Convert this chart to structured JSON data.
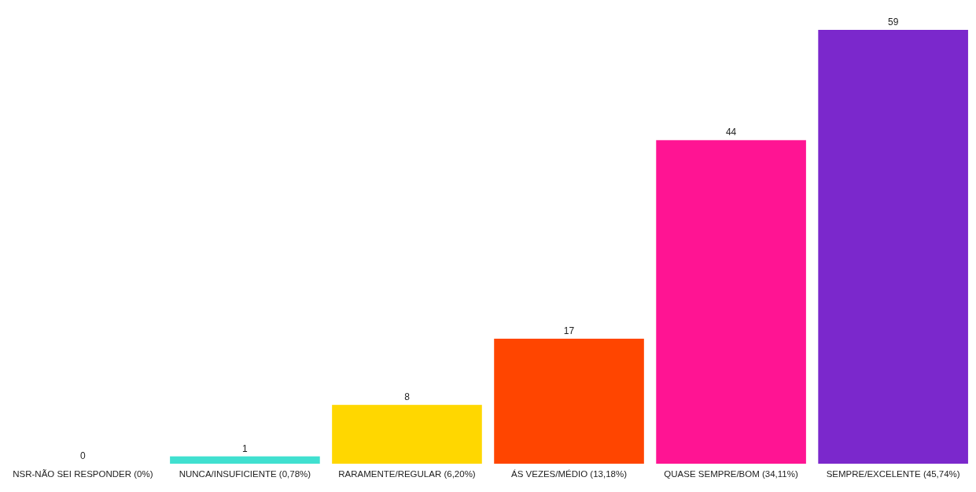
{
  "chart_data": {
    "type": "bar",
    "categories": [
      "NSR-NÃO SEI RESPONDER (0%)",
      "NUNCA/INSUFICIENTE (0,78%)",
      "RARAMENTE/REGULAR (6,20%)",
      "ÁS VEZES/MÉDIO (13,18%)",
      "QUASE SEMPRE/BOM (34,11%)",
      "SEMPRE/EXCELENTE (45,74%)"
    ],
    "values": [
      0,
      1,
      8,
      17,
      44,
      59
    ],
    "colors": [
      "#6495ed",
      "#40e0d0",
      "#ffd700",
      "#ff4500",
      "#ff1493",
      "#7b28cc"
    ],
    "data_labels": true
  }
}
